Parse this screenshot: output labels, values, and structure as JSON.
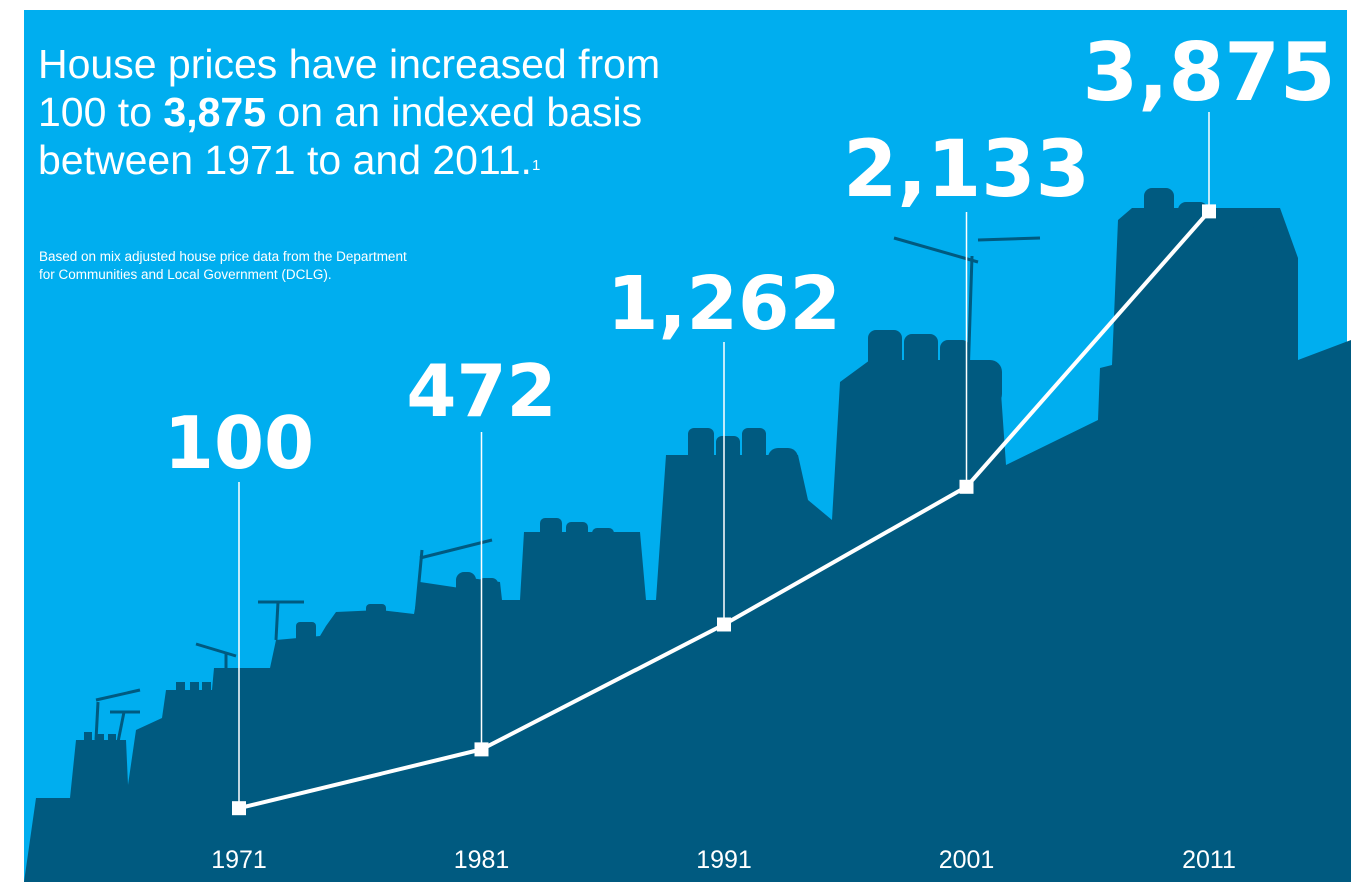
{
  "headline": {
    "line1": "House prices have increased from",
    "line2_pre": "100 to ",
    "line2_highlight": "3,875",
    "line2_post": " on an indexed basis",
    "line3": "between 1971 to and 2011.",
    "footnote_mark": "1"
  },
  "note": {
    "line1": "Based on mix adjusted house price data from the Department",
    "line2": "for Communities and Local Government (DCLG)."
  },
  "colors": {
    "sky": "#00aeef",
    "silhouette": "#005a80",
    "line": "#ffffff"
  },
  "chart_data": {
    "type": "line",
    "x": [
      "1971",
      "1981",
      "1991",
      "2001",
      "2011"
    ],
    "series": [
      {
        "values": [
          100,
          472,
          1262,
          2133,
          3875
        ],
        "labels": [
          "100",
          "472",
          "1,262",
          "2,133",
          "3,875"
        ]
      }
    ],
    "xlabel": "",
    "ylabel": "",
    "ylim": [
      0,
      4200
    ],
    "grid": false,
    "legend": "none"
  }
}
